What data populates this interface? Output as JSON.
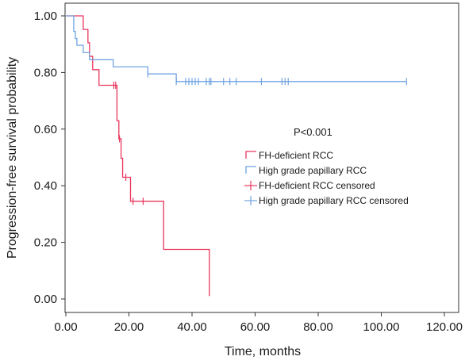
{
  "chart_data": {
    "type": "line",
    "subtype": "kaplan-meier step plot",
    "xlabel": "Time, months",
    "ylabel": "Progression-free survival probability",
    "xlim": [
      0,
      120
    ],
    "ylim": [
      0,
      1
    ],
    "x_ticks": [
      "0.00",
      "20.00",
      "40.00",
      "60.00",
      "80.00",
      "100.00",
      "120.00"
    ],
    "x_tick_values": [
      0,
      20,
      40,
      60,
      80,
      100,
      120
    ],
    "y_ticks": [
      "0.00",
      "0.20",
      "0.40",
      "0.60",
      "0.80",
      "1.00"
    ],
    "y_tick_values": [
      0,
      0.2,
      0.4,
      0.6,
      0.8,
      1.0
    ],
    "grid": false,
    "annotation": "P<0.001",
    "legend_position": "center-right",
    "legend": [
      {
        "label": "FH-deficient RCC",
        "series": "fh",
        "kind": "line"
      },
      {
        "label": "High grade papillary RCC",
        "series": "hgp",
        "kind": "line"
      },
      {
        "label": "FH-deficient RCC censored",
        "series": "fh",
        "kind": "censor"
      },
      {
        "label": "High grade papillary RCC censored",
        "series": "hgp",
        "kind": "censor"
      }
    ],
    "series": [
      {
        "id": "fh",
        "name": "FH-deficient RCC",
        "color": "#e8365d",
        "steps": [
          [
            0,
            1.0
          ],
          [
            5.5,
            0.952
          ],
          [
            7,
            0.905
          ],
          [
            7.5,
            0.857
          ],
          [
            8.5,
            0.81
          ],
          [
            10.5,
            0.755
          ],
          [
            16.2,
            0.63
          ],
          [
            16.8,
            0.566
          ],
          [
            17.5,
            0.497
          ],
          [
            18,
            0.43
          ],
          [
            20.5,
            0.345
          ],
          [
            31,
            0.175
          ],
          [
            45.5,
            0.01
          ]
        ],
        "end_x": 45.5,
        "censored": [
          [
            15.2,
            0.755
          ],
          [
            15.8,
            0.755
          ],
          [
            17.0,
            0.566
          ],
          [
            19.0,
            0.43
          ],
          [
            21.3,
            0.345
          ],
          [
            24.5,
            0.345
          ]
        ]
      },
      {
        "id": "hgp",
        "name": "High grade papillary RCC",
        "color": "#6fa3e0",
        "steps": [
          [
            0,
            1.0
          ],
          [
            2.5,
            0.945
          ],
          [
            3,
            0.92
          ],
          [
            3.5,
            0.896
          ],
          [
            5.5,
            0.87
          ],
          [
            7.5,
            0.845
          ],
          [
            15,
            0.82
          ],
          [
            26,
            0.795
          ],
          [
            35,
            0.768
          ]
        ],
        "end_x": 108,
        "censored": [
          [
            26,
            0.795
          ],
          [
            35,
            0.768
          ],
          [
            38,
            0.768
          ],
          [
            39,
            0.768
          ],
          [
            40,
            0.768
          ],
          [
            41,
            0.768
          ],
          [
            42,
            0.768
          ],
          [
            44.5,
            0.768
          ],
          [
            45.5,
            0.768
          ],
          [
            46,
            0.768
          ],
          [
            50,
            0.768
          ],
          [
            52,
            0.768
          ],
          [
            54,
            0.768
          ],
          [
            62,
            0.768
          ],
          [
            68.5,
            0.768
          ],
          [
            69.5,
            0.768
          ],
          [
            70.5,
            0.768
          ],
          [
            108,
            0.768
          ]
        ]
      }
    ]
  }
}
